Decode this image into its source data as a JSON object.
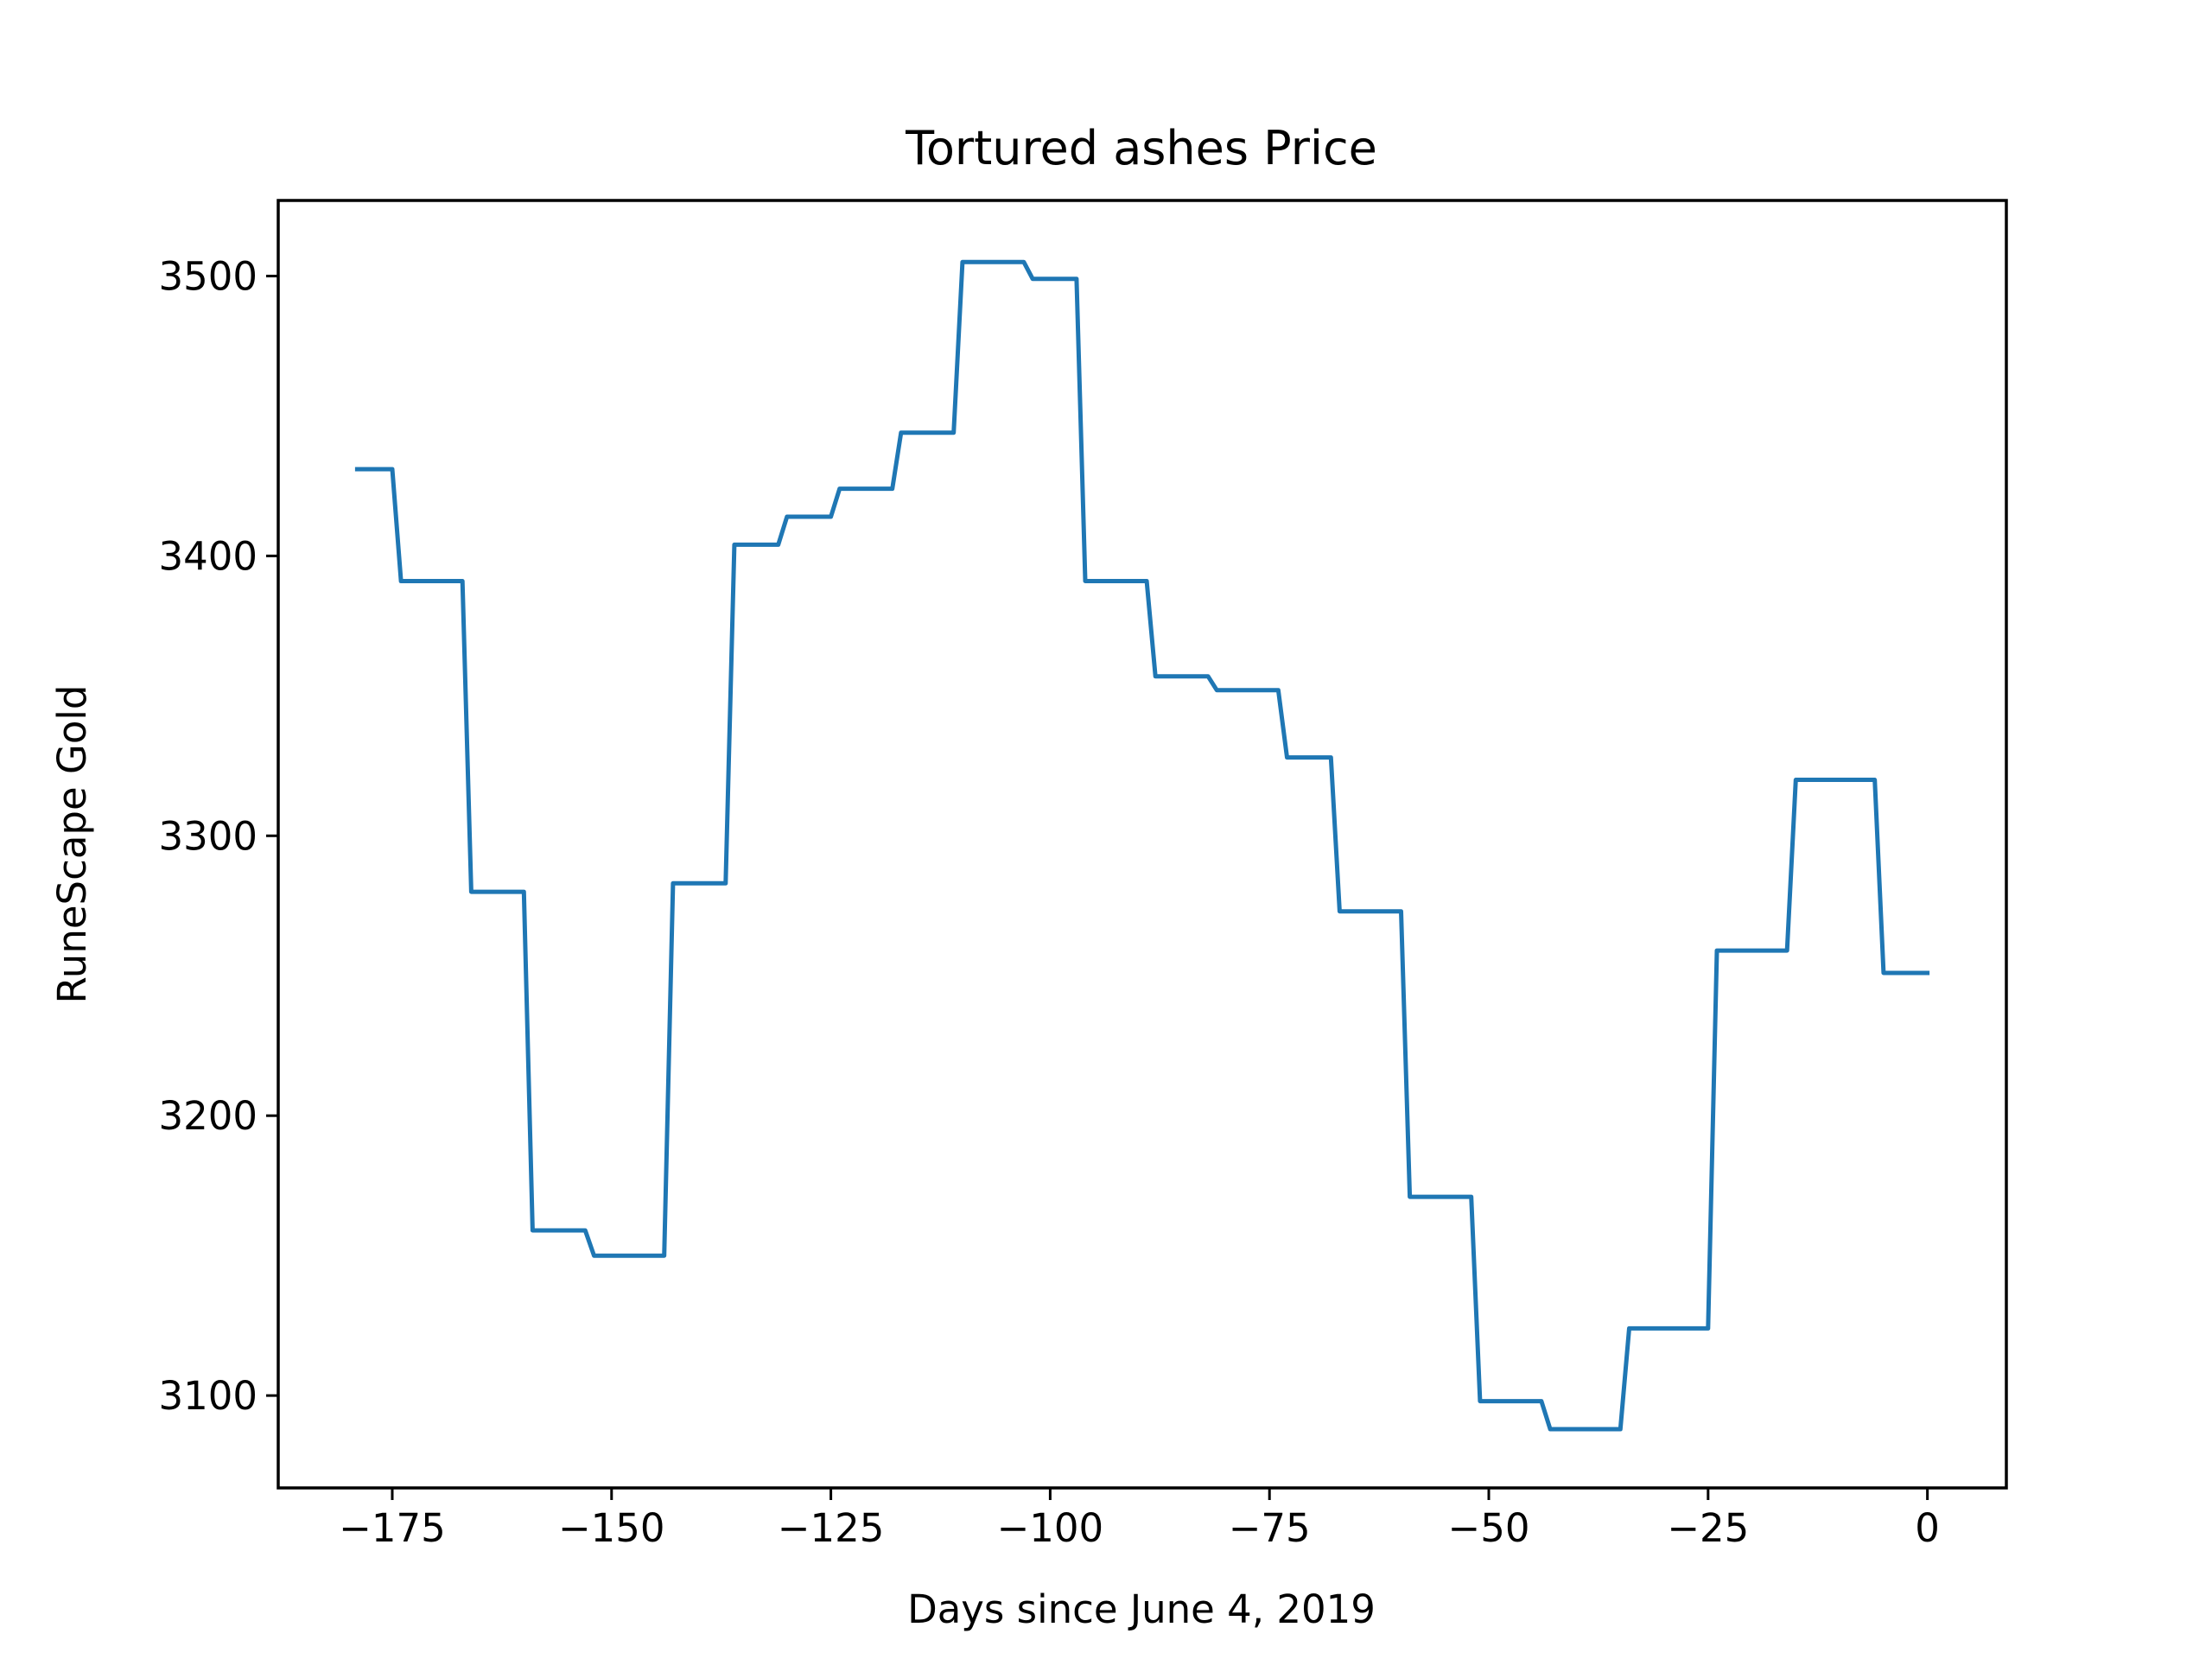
{
  "chart_data": {
    "type": "line",
    "title": "Tortured ashes Price",
    "xlabel": "Days since June 4, 2019",
    "ylabel": "RuneScape Gold",
    "xlim": [
      -188,
      9
    ],
    "ylim": [
      3067,
      3527
    ],
    "x_ticks": [
      -175,
      -150,
      -125,
      -100,
      -75,
      -50,
      -25,
      0
    ],
    "x_tick_labels": [
      "−175",
      "−150",
      "−125",
      "−100",
      "−75",
      "−50",
      "−25",
      "0"
    ],
    "y_ticks": [
      3100,
      3200,
      3300,
      3400,
      3500
    ],
    "y_tick_labels": [
      "3100",
      "3200",
      "3300",
      "3400",
      "3500"
    ],
    "grid": false,
    "line_color": "#1f77b4",
    "series": [
      {
        "x": [
          -179,
          -175,
          -174,
          -167,
          -166,
          -160,
          -159,
          -153,
          -152,
          -144,
          -143,
          -137,
          -136,
          -131,
          -130,
          -125,
          -124,
          -118,
          -117,
          -111,
          -110,
          -103,
          -102,
          -97,
          -96,
          -89,
          -88,
          -82,
          -81,
          -74,
          -73,
          -68,
          -67,
          -60,
          -59,
          -52,
          -51,
          -44,
          -43,
          -35,
          -34,
          -25,
          -24,
          -16,
          -15,
          -6,
          -5,
          0
        ],
        "y": [
          3431,
          3431,
          3391,
          3391,
          3280,
          3280,
          3159,
          3159,
          3150,
          3150,
          3283,
          3283,
          3404,
          3404,
          3414,
          3414,
          3424,
          3424,
          3444,
          3444,
          3505,
          3505,
          3499,
          3499,
          3391,
          3391,
          3357,
          3357,
          3352,
          3352,
          3328,
          3328,
          3273,
          3273,
          3171,
          3171,
          3098,
          3098,
          3088,
          3088,
          3124,
          3124,
          3259,
          3259,
          3320,
          3320,
          3251,
          3251
        ]
      }
    ]
  }
}
